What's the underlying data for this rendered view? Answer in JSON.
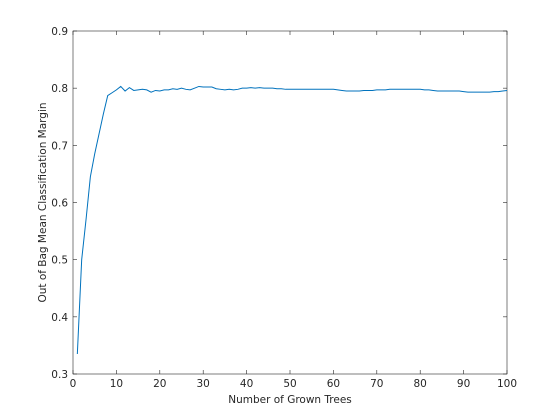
{
  "chart_data": {
    "type": "line",
    "xlabel": "Number of Grown Trees",
    "ylabel": "Out of Bag Mean Classification Margin",
    "x": [
      1,
      2,
      3,
      4,
      5,
      6,
      7,
      8,
      9,
      10,
      11,
      12,
      13,
      14,
      15,
      16,
      17,
      18,
      19,
      20,
      21,
      22,
      23,
      24,
      25,
      26,
      27,
      28,
      29,
      30,
      31,
      32,
      33,
      34,
      35,
      36,
      37,
      38,
      39,
      40,
      41,
      42,
      43,
      44,
      45,
      46,
      47,
      48,
      49,
      50,
      51,
      52,
      53,
      54,
      55,
      56,
      57,
      58,
      59,
      60,
      61,
      62,
      63,
      64,
      65,
      66,
      67,
      68,
      69,
      70,
      71,
      72,
      73,
      74,
      75,
      76,
      77,
      78,
      79,
      80,
      81,
      82,
      83,
      84,
      85,
      86,
      87,
      88,
      89,
      90,
      91,
      92,
      93,
      94,
      95,
      96,
      97,
      98,
      99,
      100
    ],
    "series": [
      {
        "color": "#0072bd",
        "values": [
          0.335,
          0.5,
          0.57,
          0.645,
          0.685,
          0.72,
          0.755,
          0.787,
          0.792,
          0.797,
          0.803,
          0.795,
          0.801,
          0.796,
          0.797,
          0.798,
          0.797,
          0.793,
          0.796,
          0.795,
          0.797,
          0.797,
          0.799,
          0.798,
          0.8,
          0.798,
          0.797,
          0.8,
          0.803,
          0.802,
          0.802,
          0.802,
          0.799,
          0.798,
          0.797,
          0.798,
          0.797,
          0.798,
          0.8,
          0.8,
          0.801,
          0.8,
          0.801,
          0.8,
          0.8,
          0.8,
          0.799,
          0.799,
          0.798,
          0.798,
          0.798,
          0.798,
          0.798,
          0.798,
          0.798,
          0.798,
          0.798,
          0.798,
          0.798,
          0.798,
          0.797,
          0.796,
          0.795,
          0.795,
          0.795,
          0.795,
          0.796,
          0.796,
          0.796,
          0.797,
          0.797,
          0.797,
          0.798,
          0.798,
          0.798,
          0.798,
          0.798,
          0.798,
          0.798,
          0.798,
          0.797,
          0.797,
          0.796,
          0.795,
          0.795,
          0.795,
          0.795,
          0.795,
          0.795,
          0.794,
          0.793,
          0.793,
          0.793,
          0.793,
          0.793,
          0.793,
          0.794,
          0.794,
          0.795,
          0.796
        ]
      }
    ],
    "xlim": [
      0,
      100
    ],
    "ylim": [
      0.3,
      0.9
    ],
    "xticks": [
      0,
      10,
      20,
      30,
      40,
      50,
      60,
      70,
      80,
      90,
      100
    ],
    "yticks": [
      0.3,
      0.4,
      0.5,
      0.6,
      0.7,
      0.8,
      0.9
    ]
  }
}
